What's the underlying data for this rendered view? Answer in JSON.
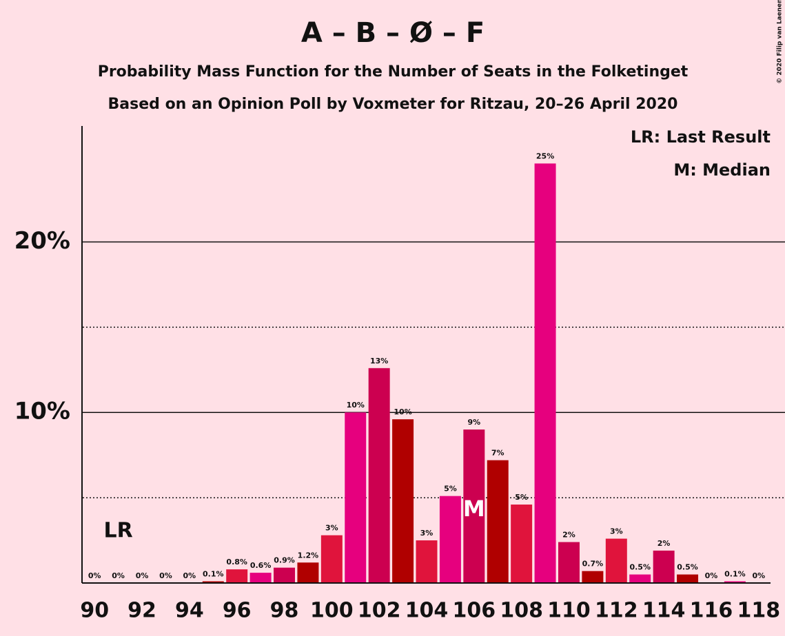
{
  "chart_data": {
    "type": "bar",
    "title": "A – B – Ø – F",
    "subtitle": "Probability Mass Function for the Number of Seats in the Folketinget",
    "subtitle2": "Based on an Opinion Poll by Voxmeter for Ritzau, 20–26 April 2020",
    "copyright": "© 2020 Filip van Laenen",
    "x": [
      90,
      91,
      92,
      93,
      94,
      95,
      96,
      97,
      98,
      99,
      100,
      101,
      102,
      103,
      104,
      105,
      106,
      107,
      108,
      109,
      110,
      111,
      112,
      113,
      114,
      115,
      116,
      117,
      118
    ],
    "values": [
      0,
      0,
      0,
      0,
      0,
      0.1,
      0.8,
      0.6,
      0.9,
      1.2,
      2.8,
      10.0,
      12.6,
      9.6,
      2.5,
      5.1,
      9.0,
      7.2,
      4.6,
      24.6,
      2.4,
      0.7,
      2.6,
      0.5,
      1.9,
      0.5,
      0,
      0.1,
      0
    ],
    "value_labels": [
      "0%",
      "0%",
      "0%",
      "0%",
      "0%",
      "0.1%",
      "0.8%",
      "0.6%",
      "0.9%",
      "1.2%",
      "3%",
      "10%",
      "13%",
      "10%",
      "3%",
      "5%",
      "9%",
      "7%",
      "5%",
      "25%",
      "2%",
      "0.7%",
      "3%",
      "0.5%",
      "2%",
      "0.5%",
      "0%",
      "0.1%",
      "0%"
    ],
    "colors": [
      "#e6007e",
      "#cc0050",
      "#b00000",
      "#e0143c",
      "#e6007e",
      "#b00000",
      "#e0143c",
      "#e6007e",
      "#cc0050",
      "#b00000",
      "#e0143c",
      "#e6007e",
      "#cc0050",
      "#b00000",
      "#e0143c",
      "#e6007e",
      "#cc0050",
      "#b00000",
      "#e0143c",
      "#e6007e",
      "#cc0050",
      "#b00000",
      "#e0143c",
      "#e6007e",
      "#cc0050",
      "#b00000",
      "#e0143c",
      "#e6007e",
      "#cc0050"
    ],
    "xlim": [
      89.5,
      118.5
    ],
    "xticks": [
      90,
      92,
      94,
      96,
      98,
      100,
      102,
      104,
      106,
      108,
      110,
      112,
      114,
      116,
      118
    ],
    "ylim": [
      0,
      26.8
    ],
    "yticks": [
      {
        "value": 10,
        "label": "10%"
      },
      {
        "value": 20,
        "label": "20%"
      }
    ],
    "minor_grid": [
      5,
      15
    ],
    "grid": true,
    "last_result": {
      "x": 91,
      "label": "LR"
    },
    "median": {
      "x": 106,
      "label": "M"
    },
    "legend": [
      "LR: Last Result",
      "M: Median"
    ]
  }
}
